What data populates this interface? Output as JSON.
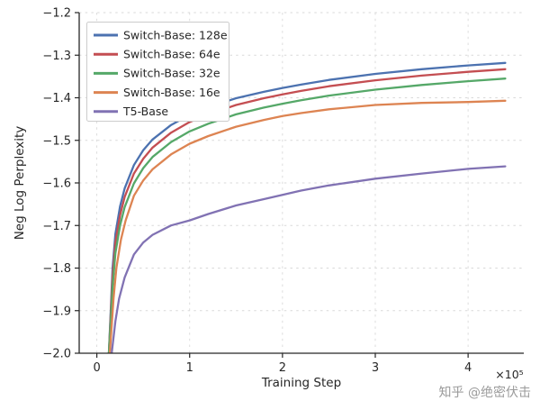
{
  "watermark": "知乎 @绝密伏击",
  "chart_data": {
    "type": "line",
    "title": "",
    "xlabel": "Training Step",
    "ylabel": "Neg Log Perplexity",
    "x_offset_label": "×10⁵",
    "xlim": [
      -0.19,
      4.6
    ],
    "ylim": [
      -2.0,
      -1.2
    ],
    "xticks": [
      0,
      1,
      2,
      3,
      4
    ],
    "yticks": [
      -1.2,
      -1.3,
      -1.4,
      -1.5,
      -1.6,
      -1.7,
      -1.8,
      -1.9,
      -2.0
    ],
    "grid": "dashed",
    "grid_color": "#d9d9d9",
    "axis_color": "#262626",
    "legend_position": "upper left",
    "legend_border_color": "#cccccc",
    "series": [
      {
        "name": "Switch-Base: 128e",
        "color": "#4C72B0",
        "x": [
          0.13,
          0.17,
          0.2,
          0.25,
          0.3,
          0.4,
          0.5,
          0.6,
          0.8,
          1.0,
          1.2,
          1.5,
          1.8,
          2.0,
          2.2,
          2.5,
          3.0,
          3.5,
          4.0,
          4.4
        ],
        "y": [
          -2.0,
          -1.8,
          -1.72,
          -1.655,
          -1.613,
          -1.558,
          -1.523,
          -1.498,
          -1.464,
          -1.44,
          -1.422,
          -1.401,
          -1.386,
          -1.377,
          -1.369,
          -1.358,
          -1.344,
          -1.333,
          -1.324,
          -1.318
        ]
      },
      {
        "name": "Switch-Base: 64e",
        "color": "#C44E52",
        "x": [
          0.13,
          0.17,
          0.2,
          0.25,
          0.3,
          0.4,
          0.5,
          0.6,
          0.8,
          1.0,
          1.2,
          1.5,
          1.8,
          2.0,
          2.2,
          2.5,
          3.0,
          3.5,
          4.0,
          4.4
        ],
        "y": [
          -2.0,
          -1.82,
          -1.74,
          -1.676,
          -1.633,
          -1.578,
          -1.543,
          -1.517,
          -1.482,
          -1.457,
          -1.439,
          -1.417,
          -1.401,
          -1.392,
          -1.384,
          -1.373,
          -1.359,
          -1.348,
          -1.339,
          -1.333
        ]
      },
      {
        "name": "Switch-Base: 32e",
        "color": "#55A868",
        "x": [
          0.13,
          0.17,
          0.2,
          0.25,
          0.3,
          0.4,
          0.5,
          0.6,
          0.8,
          1.0,
          1.2,
          1.5,
          1.8,
          2.0,
          2.2,
          2.5,
          3.0,
          3.5,
          4.0,
          4.4
        ],
        "y": [
          -2.0,
          -1.845,
          -1.765,
          -1.7,
          -1.657,
          -1.601,
          -1.565,
          -1.539,
          -1.504,
          -1.479,
          -1.461,
          -1.439,
          -1.423,
          -1.414,
          -1.406,
          -1.395,
          -1.381,
          -1.37,
          -1.361,
          -1.355
        ]
      },
      {
        "name": "Switch-Base: 16e",
        "color": "#DD8452",
        "x": [
          0.14,
          0.18,
          0.21,
          0.26,
          0.31,
          0.4,
          0.5,
          0.6,
          0.8,
          1.0,
          1.2,
          1.5,
          1.8,
          2.0,
          2.2,
          2.5,
          3.0,
          3.5,
          4.0,
          4.4
        ],
        "y": [
          -2.0,
          -1.87,
          -1.8,
          -1.733,
          -1.688,
          -1.63,
          -1.594,
          -1.568,
          -1.533,
          -1.508,
          -1.49,
          -1.468,
          -1.452,
          -1.443,
          -1.436,
          -1.427,
          -1.417,
          -1.412,
          -1.41,
          -1.407
        ]
      },
      {
        "name": "T5-Base",
        "color": "#8172B3",
        "x": [
          0.16,
          0.2,
          0.24,
          0.3,
          0.4,
          0.5,
          0.6,
          0.8,
          1.0,
          1.2,
          1.5,
          1.8,
          2.0,
          2.2,
          2.5,
          3.0,
          3.5,
          4.0,
          4.4
        ],
        "y": [
          -2.0,
          -1.925,
          -1.872,
          -1.822,
          -1.768,
          -1.74,
          -1.722,
          -1.7,
          -1.688,
          -1.673,
          -1.653,
          -1.638,
          -1.628,
          -1.618,
          -1.606,
          -1.59,
          -1.578,
          -1.567,
          -1.561
        ]
      }
    ]
  }
}
